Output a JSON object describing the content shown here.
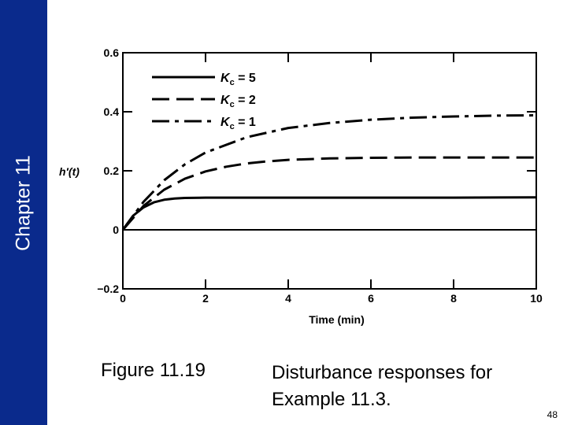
{
  "slide": {
    "chapter_label": "Chapter 11",
    "figure_label": "Figure 11.19",
    "caption": "Disturbance responses for Example 11.3.",
    "page_number": "48",
    "sidebar_color": "#0a2a8c"
  },
  "chart_data": {
    "type": "line",
    "title": "",
    "xlabel": "Time (min)",
    "ylabel": "h′(t)",
    "xlim": [
      0,
      10
    ],
    "ylim": [
      -0.2,
      0.6
    ],
    "xticks": [
      0,
      2,
      4,
      6,
      8,
      10
    ],
    "xtick_labels": [
      "0",
      "2",
      "4",
      "6",
      "8",
      "10"
    ],
    "yticks": [
      -0.2,
      0,
      0.2,
      0.4,
      0.6
    ],
    "ytick_labels": [
      "−0.2",
      "0",
      "0.2",
      "0.4",
      "0.6"
    ],
    "grid": false,
    "legend_position": "top-left",
    "baseline": 0,
    "series": [
      {
        "name": "Kc = 5",
        "legend_symbol": "K",
        "legend_subscript": "c",
        "legend_value": "= 5",
        "style": "solid",
        "x": [
          0,
          0.25,
          0.5,
          0.75,
          1.0,
          1.25,
          1.5,
          2,
          3,
          4,
          6,
          8,
          10
        ],
        "y": [
          0,
          0.048,
          0.076,
          0.093,
          0.102,
          0.106,
          0.108,
          0.109,
          0.109,
          0.109,
          0.109,
          0.109,
          0.11
        ]
      },
      {
        "name": "Kc = 2",
        "legend_symbol": "K",
        "legend_subscript": "c",
        "legend_value": "= 2",
        "style": "dashed",
        "x": [
          0,
          0.5,
          1,
          1.5,
          2,
          2.5,
          3,
          3.5,
          4,
          5,
          6,
          7,
          8,
          10
        ],
        "y": [
          0,
          0.081,
          0.136,
          0.173,
          0.198,
          0.214,
          0.225,
          0.232,
          0.237,
          0.242,
          0.244,
          0.245,
          0.245,
          0.245
        ]
      },
      {
        "name": "Kc = 1",
        "legend_symbol": "K",
        "legend_subscript": "c",
        "legend_value": "= 1",
        "style": "dashdot",
        "x": [
          0,
          0.5,
          1,
          1.5,
          2,
          3,
          4,
          5,
          6,
          7,
          8,
          9,
          10
        ],
        "y": [
          0,
          0.095,
          0.168,
          0.222,
          0.262,
          0.314,
          0.345,
          0.362,
          0.373,
          0.38,
          0.384,
          0.387,
          0.388
        ]
      }
    ]
  }
}
